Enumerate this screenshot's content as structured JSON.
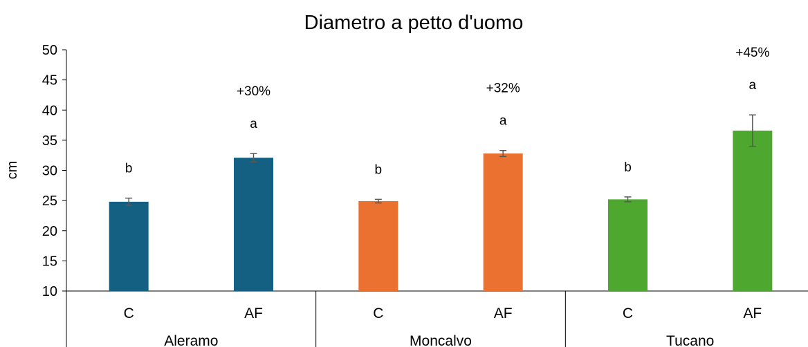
{
  "chart_data": {
    "type": "bar",
    "title": "Diametro a petto d'uomo",
    "xlabel": "",
    "ylabel": "cm",
    "ylim": [
      10,
      50
    ],
    "yticks": [
      10,
      15,
      20,
      25,
      30,
      35,
      40,
      45,
      50
    ],
    "grid": false,
    "legend": "none",
    "groups": [
      {
        "name": "Aleramo",
        "color": "#136083",
        "bars": [
          {
            "category": "C",
            "value": 24.8,
            "error": 0.6,
            "letter": "b",
            "pct": ""
          },
          {
            "category": "AF",
            "value": 32.1,
            "error": 0.7,
            "letter": "a",
            "pct": "+30%"
          }
        ]
      },
      {
        "name": "Moncalvo",
        "color": "#EA7130",
        "bars": [
          {
            "category": "C",
            "value": 24.9,
            "error": 0.3,
            "letter": "b",
            "pct": ""
          },
          {
            "category": "AF",
            "value": 32.8,
            "error": 0.5,
            "letter": "a",
            "pct": "+32%"
          }
        ]
      },
      {
        "name": "Tucano",
        "color": "#4EA72E",
        "bars": [
          {
            "category": "C",
            "value": 25.2,
            "error": 0.4,
            "letter": "b",
            "pct": ""
          },
          {
            "category": "AF",
            "value": 36.6,
            "error": 2.6,
            "letter": "a",
            "pct": "+45%"
          }
        ]
      }
    ]
  }
}
